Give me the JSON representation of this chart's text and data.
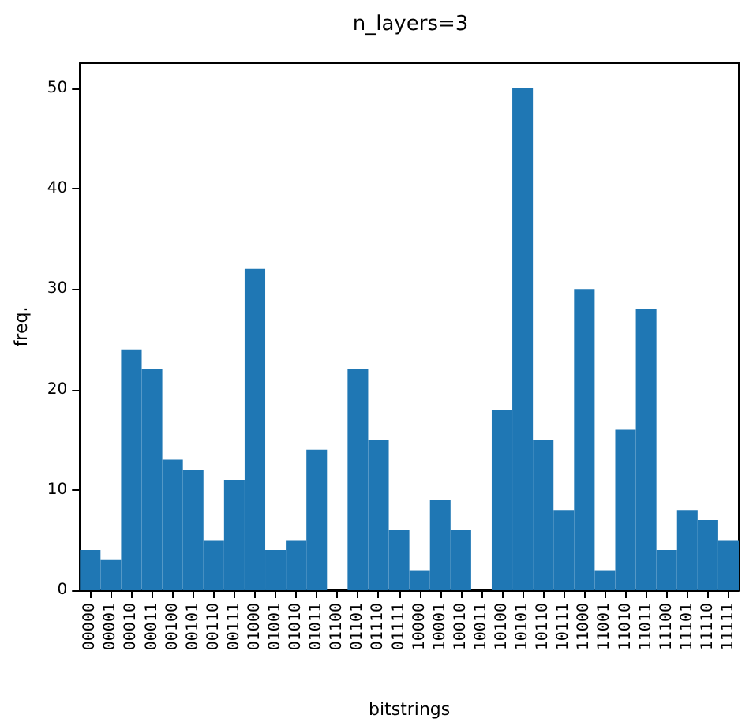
{
  "chart_data": {
    "type": "bar",
    "title": "n_layers=3",
    "xlabel": "bitstrings",
    "ylabel": "freq.",
    "categories": [
      "00000",
      "00001",
      "00010",
      "00011",
      "00100",
      "00101",
      "00110",
      "00111",
      "01000",
      "01001",
      "01010",
      "01011",
      "01100",
      "01101",
      "01110",
      "01111",
      "10000",
      "10001",
      "10010",
      "10011",
      "10100",
      "10101",
      "10110",
      "10111",
      "11000",
      "11001",
      "11010",
      "11011",
      "11100",
      "11101",
      "11110",
      "11111"
    ],
    "values": [
      4,
      3,
      24,
      22,
      13,
      12,
      5,
      11,
      32,
      4,
      5,
      14,
      0,
      22,
      15,
      6,
      2,
      9,
      6,
      0,
      18,
      50,
      15,
      8,
      30,
      2,
      16,
      28,
      4,
      8,
      7,
      5
    ],
    "color": "#1f77b4",
    "ylim": [
      0,
      52.5
    ],
    "yticks": [
      0,
      10,
      20,
      30,
      40,
      50
    ],
    "grid": false
  }
}
